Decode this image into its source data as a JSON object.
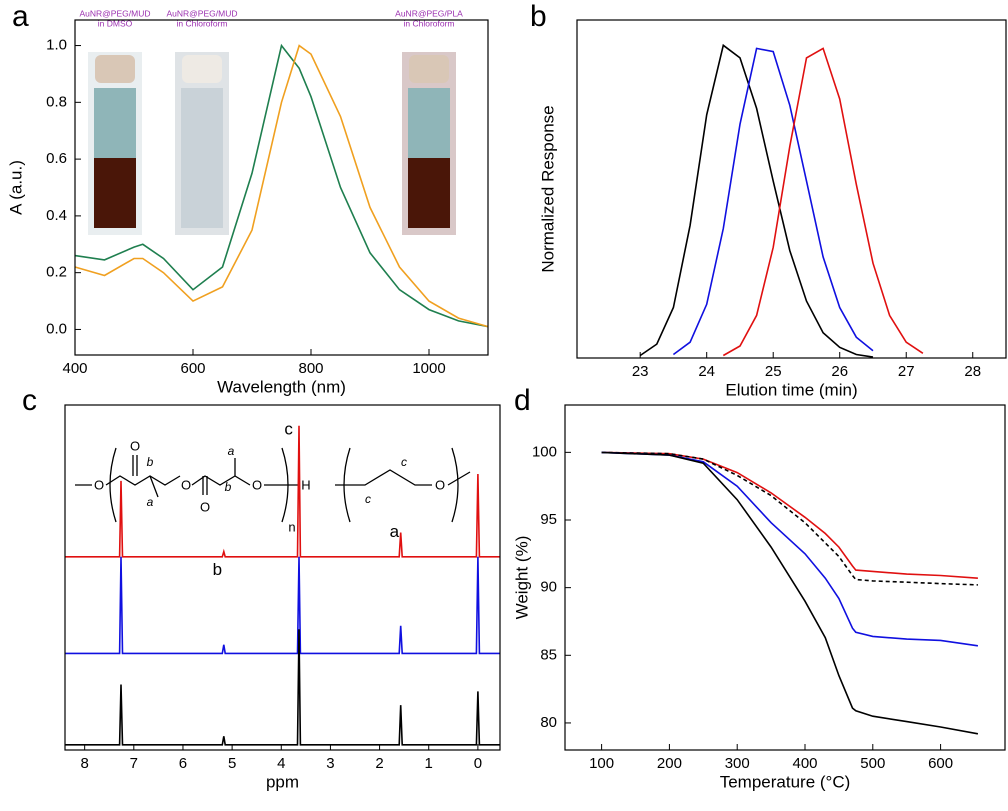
{
  "chart_data": [
    {
      "type": "line",
      "panel_label": "a",
      "xlabel": "Wavelength (nm)",
      "ylabel": "A (a.u.)",
      "xlim": [
        400,
        1100
      ],
      "ylim": [
        -0.09,
        1.09
      ],
      "xticks": [
        400,
        600,
        800,
        1000
      ],
      "yticks": [
        {
          "value": 0,
          "label": "0.0"
        },
        {
          "value": 0.2,
          "label": "0.2"
        },
        {
          "value": 0.4,
          "label": "0.4"
        },
        {
          "value": 0.6,
          "label": "0.6"
        },
        {
          "value": 0.8,
          "label": "0.8"
        },
        {
          "value": 1,
          "label": "1.0"
        }
      ],
      "x": [
        400,
        450,
        500,
        515,
        550,
        600,
        650,
        700,
        750,
        780,
        800,
        850,
        900,
        950,
        1000,
        1050,
        1100
      ],
      "series": [
        {
          "color": "#1f7f4f",
          "values": [
            0.26,
            0.245,
            0.29,
            0.3,
            0.25,
            0.14,
            0.22,
            0.55,
            1.0,
            0.92,
            0.82,
            0.5,
            0.27,
            0.14,
            0.07,
            0.03,
            0.01
          ]
        },
        {
          "color": "#f0a020",
          "values": [
            0.22,
            0.19,
            0.25,
            0.25,
            0.2,
            0.1,
            0.15,
            0.35,
            0.8,
            1.0,
            0.97,
            0.75,
            0.43,
            0.22,
            0.1,
            0.04,
            0.01
          ]
        }
      ],
      "insets": [
        [
          "AuNR@PEG/MUD",
          "in DMSO"
        ],
        [
          "AuNR@PEG/MUD",
          "in Chloroform"
        ],
        [
          "AuNR@PEG/PLA",
          "in Chloroform"
        ]
      ]
    },
    {
      "type": "line",
      "panel_label": "b",
      "xlabel": "Elution time (min)",
      "ylabel": "Normalized Response",
      "xlim": [
        22.05,
        28.5
      ],
      "ylim": [
        0,
        1.07
      ],
      "xticks": [
        23,
        24,
        25,
        26,
        27,
        28
      ],
      "x": [
        23.0,
        23.25,
        23.5,
        23.75,
        24.0,
        24.25,
        24.5,
        24.75,
        25.0,
        25.25,
        25.5,
        25.75,
        26.0,
        26.25,
        26.5,
        26.75,
        27.0,
        27.25
      ],
      "series": [
        {
          "color": "#000000",
          "values": [
            0.008,
            0.044,
            0.16,
            0.42,
            0.77,
            0.99,
            0.95,
            0.79,
            0.56,
            0.34,
            0.18,
            0.08,
            0.034,
            0.011,
            0.003,
            null,
            null,
            null
          ]
        },
        {
          "color": "#1010e0",
          "values": [
            null,
            null,
            0.011,
            0.05,
            0.17,
            0.41,
            0.74,
            0.98,
            0.97,
            0.8,
            0.56,
            0.32,
            0.16,
            0.066,
            0.023,
            null,
            null,
            null
          ]
        },
        {
          "color": "#e01010",
          "values": [
            null,
            null,
            null,
            null,
            null,
            0.008,
            0.038,
            0.135,
            0.35,
            0.67,
            0.95,
            0.98,
            0.82,
            0.55,
            0.3,
            0.135,
            0.05,
            0.015
          ]
        }
      ]
    },
    {
      "type": "line",
      "panel_label": "c",
      "xlabel": "ppm",
      "xlim": [
        8.4,
        -0.45
      ],
      "ylim": [
        0,
        10
      ],
      "xticks": [
        8,
        7,
        6,
        5,
        4,
        3,
        2,
        1,
        0
      ],
      "x": [
        8.4,
        7.29,
        7.26,
        7.23,
        5.2,
        5.17,
        5.14,
        3.67,
        3.64,
        3.61,
        1.6,
        1.57,
        1.54,
        0.03,
        0,
        -0.03,
        -0.45
      ],
      "series": [
        {
          "color": "#e01010",
          "values": [
            5.6,
            5.6,
            7.8,
            5.6,
            5.6,
            5.75,
            5.6,
            5.6,
            9.4,
            5.6,
            5.6,
            6.3,
            5.6,
            5.6,
            8.0,
            5.6,
            5.6
          ]
        },
        {
          "color": "#1010e0",
          "values": [
            2.8,
            2.8,
            5.6,
            2.8,
            2.8,
            3.05,
            2.8,
            2.8,
            5.6,
            2.8,
            2.8,
            3.6,
            2.8,
            2.8,
            5.6,
            2.8,
            2.8
          ]
        },
        {
          "color": "#000000",
          "values": [
            0.15,
            0.15,
            1.9,
            0.15,
            0.15,
            0.4,
            0.15,
            0.15,
            3.5,
            0.15,
            0.15,
            1.3,
            0.15,
            0.15,
            1.7,
            0.15,
            0.15
          ]
        }
      ],
      "annotations": [
        "c",
        "b",
        "a"
      ],
      "structure_labels": [
        "O",
        "O",
        "O",
        "O",
        "O",
        "b",
        "a",
        "a",
        "b",
        "n",
        "H",
        "c",
        "c",
        "O"
      ]
    },
    {
      "type": "line",
      "panel_label": "d",
      "xlabel": "Temperature (°C)",
      "ylabel": "Weight (%)",
      "xlim": [
        46,
        695
      ],
      "ylim": [
        78,
        103.5
      ],
      "xticks": [
        100,
        200,
        300,
        400,
        500,
        600
      ],
      "yticks": [
        80,
        85,
        90,
        95,
        100
      ],
      "x": [
        100,
        200,
        250,
        300,
        350,
        400,
        430,
        450,
        470,
        475,
        500,
        550,
        600,
        655
      ],
      "series": [
        {
          "color": "#e01010",
          "values": [
            100,
            99.9,
            99.5,
            98.5,
            97,
            95.2,
            94,
            93,
            91.6,
            91.3,
            91.2,
            91,
            90.9,
            90.7
          ]
        },
        {
          "color": "#000000",
          "line_style": "dashed",
          "values": [
            100,
            99.9,
            99.5,
            98.3,
            96.8,
            94.8,
            93.3,
            92.3,
            90.9,
            90.6,
            90.5,
            90.4,
            90.3,
            90.2
          ]
        },
        {
          "color": "#1010e0",
          "values": [
            100,
            99.8,
            99.3,
            97.5,
            94.8,
            92.5,
            90.7,
            89.2,
            87,
            86.7,
            86.4,
            86.2,
            86.1,
            85.7
          ]
        },
        {
          "color": "#000000",
          "values": [
            100,
            99.8,
            99.2,
            96.5,
            93,
            89,
            86.3,
            83.5,
            81.1,
            80.9,
            80.5,
            80.1,
            79.7,
            79.2
          ]
        }
      ]
    }
  ]
}
